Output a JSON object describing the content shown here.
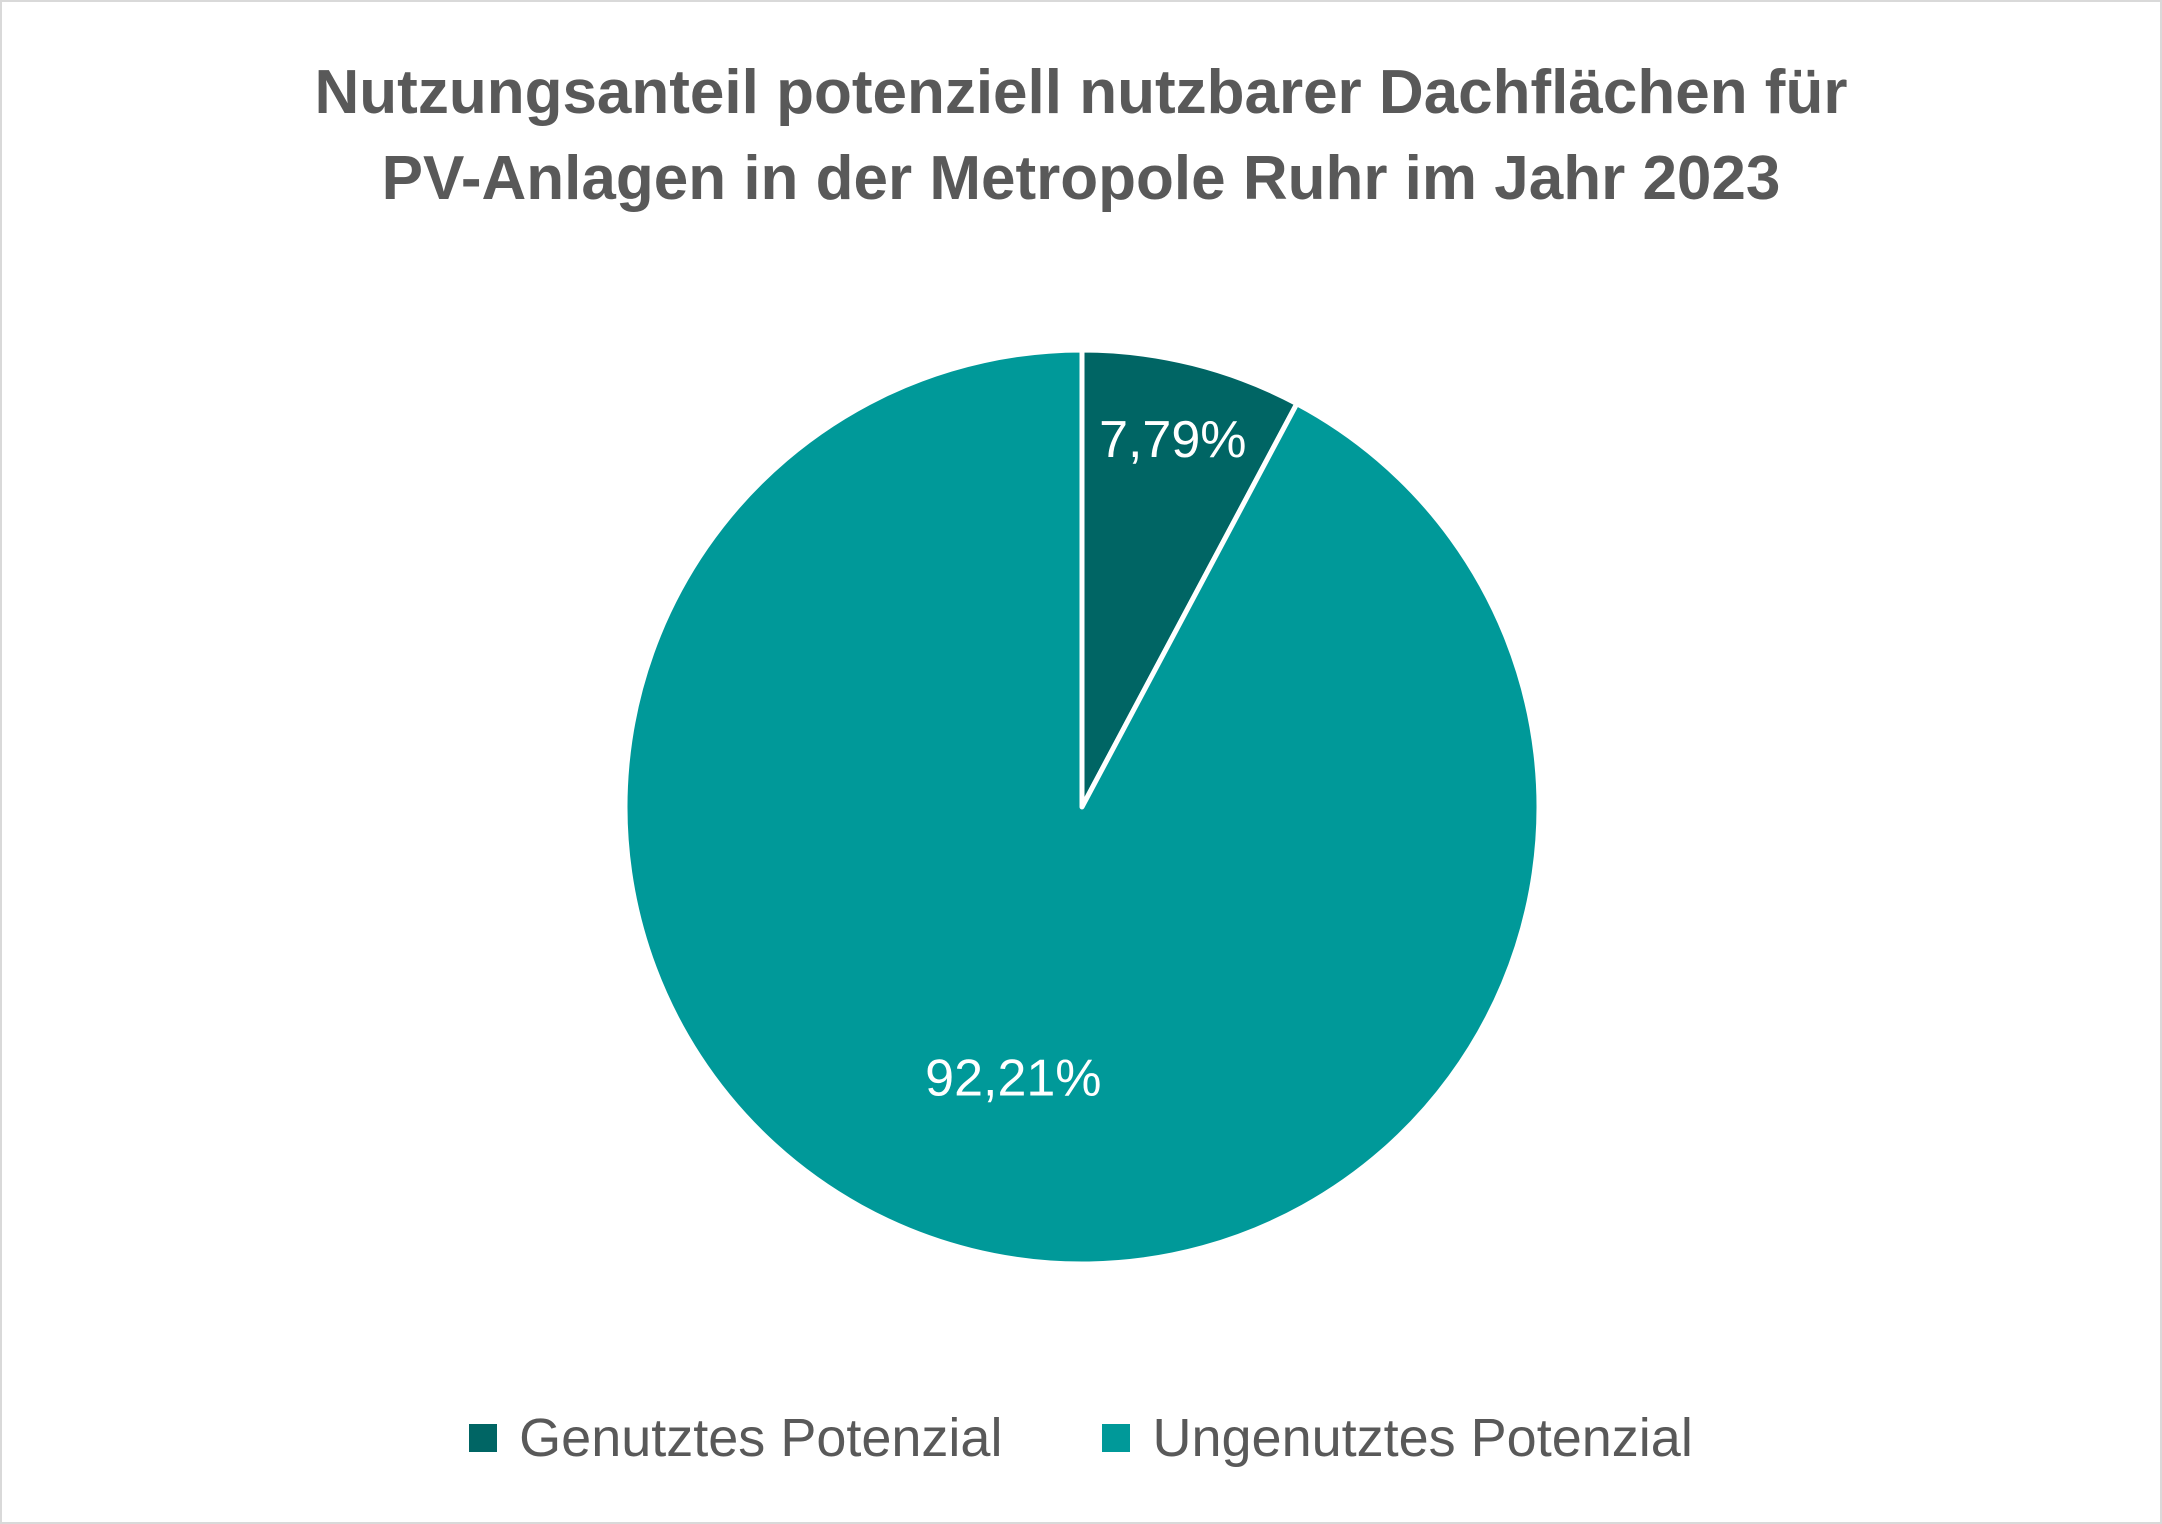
{
  "chart_data": {
    "type": "pie",
    "title_lines": [
      "Nutzungsanteil potenziell nutzbarer Dachflächen für",
      "PV-Anlagen in der Metropole Ruhr im Jahr 2023"
    ],
    "categories": [
      "Genutztes Potenzial",
      "Ungenutztes Potenzial"
    ],
    "values": [
      7.79,
      92.21
    ],
    "data_labels": [
      "7,79%",
      "92,21%"
    ],
    "colors": [
      "#006564",
      "#009999"
    ],
    "legend_position": "bottom"
  }
}
